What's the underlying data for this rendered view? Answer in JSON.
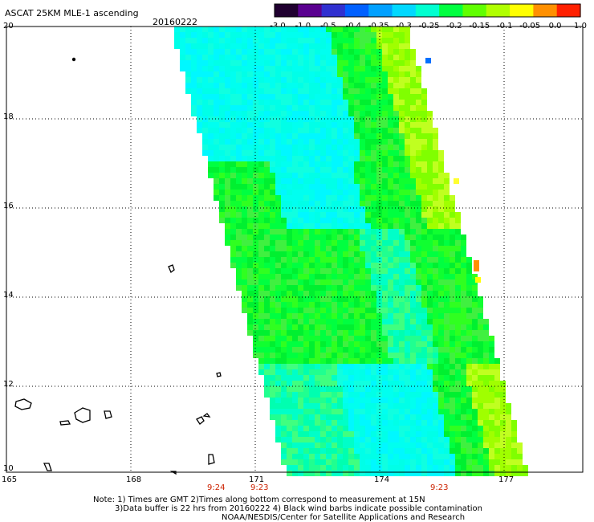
{
  "header": {
    "title": "ASCAT 25KM MLE-1 ascending",
    "date": "20160222"
  },
  "colorbar": {
    "labels": [
      "-3.0",
      "-1.0",
      "-0.5",
      "-0.4",
      "-0.35",
      "-0.3",
      "-0.25",
      "-0.2",
      "-0.15",
      "-0.1",
      "-0.05",
      "0.0",
      "1.0"
    ],
    "colors": [
      "#200030",
      "#5a0090",
      "#3030d0",
      "#0060ff",
      "#00a0ff",
      "#00d8ff",
      "#00ffd0",
      "#00ff40",
      "#60ff00",
      "#b0ff00",
      "#ffff00",
      "#ff9000",
      "#ff2000"
    ]
  },
  "map": {
    "y_labels": [
      "20",
      "18",
      "16",
      "14",
      "12",
      "10"
    ],
    "x_labels": [
      "165",
      "168",
      "171",
      "174",
      "177"
    ],
    "time_labels": [
      "9:24",
      "9:23",
      "9:23"
    ]
  },
  "footer": {
    "line1": "Note: 1) Times are GMT 2)Times along bottom correspond to measurement at 15N",
    "line2": "3)Data buffer is 22 hrs from 20160222 4) Black wind barbs indicate possible contamination",
    "line3": "NOAA/NESDIS/Center for Satellite Applications and Research"
  }
}
